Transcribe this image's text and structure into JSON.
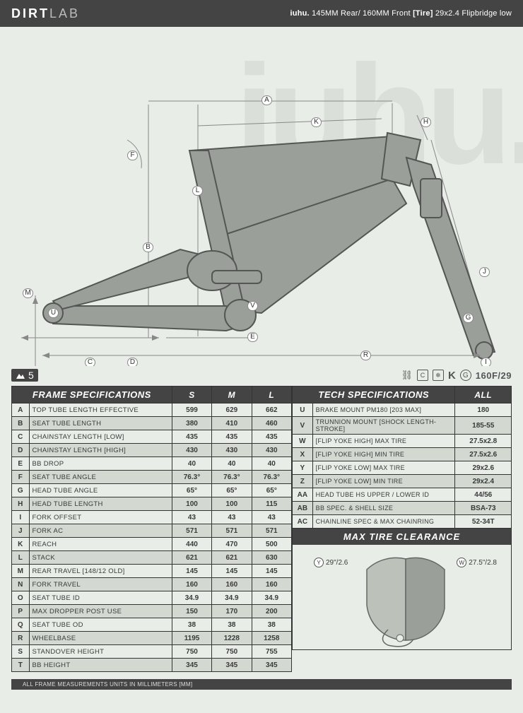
{
  "header": {
    "brand_bold": "DIRT",
    "brand_light": "LAB",
    "model": "iuhu.",
    "spec_text": "145MM Rear/ 160MM Front",
    "tire_label": "[Tire]",
    "tire_spec": "29x2.4 Flipbridge low"
  },
  "watermark": "iuhu.",
  "diagram_labels": [
    "A",
    "B",
    "C",
    "D",
    "E",
    "F",
    "G",
    "H",
    "I",
    "J",
    "K",
    "L",
    "M",
    "R",
    "U",
    "V"
  ],
  "badge": {
    "left_num": "5",
    "right_text": "160F/29"
  },
  "frame_table": {
    "title": "FRAME SPECIFICATIONS",
    "size_cols": [
      "S",
      "M",
      "L"
    ],
    "rows": [
      {
        "k": "A",
        "label": "TOP TUBE LENGTH EFFECTIVE",
        "v": [
          "599",
          "629",
          "662"
        ]
      },
      {
        "k": "B",
        "label": "SEAT TUBE LENGTH",
        "v": [
          "380",
          "410",
          "460"
        ]
      },
      {
        "k": "C",
        "label": "CHAINSTAY LENGTH [LOW]",
        "v": [
          "435",
          "435",
          "435"
        ]
      },
      {
        "k": "D",
        "label": "CHAINSTAY LENGTH [HIGH]",
        "v": [
          "430",
          "430",
          "430"
        ]
      },
      {
        "k": "E",
        "label": "BB DROP",
        "v": [
          "40",
          "40",
          "40"
        ]
      },
      {
        "k": "F",
        "label": "SEAT TUBE ANGLE",
        "v": [
          "76.3°",
          "76.3°",
          "76.3°"
        ]
      },
      {
        "k": "G",
        "label": "HEAD TUBE ANGLE",
        "v": [
          "65°",
          "65°",
          "65°"
        ]
      },
      {
        "k": "H",
        "label": "HEAD TUBE LENGTH",
        "v": [
          "100",
          "100",
          "115"
        ]
      },
      {
        "k": "I",
        "label": "FORK OFFSET",
        "v": [
          "43",
          "43",
          "43"
        ]
      },
      {
        "k": "J",
        "label": "FORK AC",
        "v": [
          "571",
          "571",
          "571"
        ]
      },
      {
        "k": "K",
        "label": "REACH",
        "v": [
          "440",
          "470",
          "500"
        ]
      },
      {
        "k": "L",
        "label": "STACK",
        "v": [
          "621",
          "621",
          "630"
        ]
      },
      {
        "k": "M",
        "label": "REAR TRAVEL [148/12 OLD]",
        "v": [
          "145",
          "145",
          "145"
        ]
      },
      {
        "k": "N",
        "label": "FORK TRAVEL",
        "v": [
          "160",
          "160",
          "160"
        ]
      },
      {
        "k": "O",
        "label": "SEAT TUBE ID",
        "v": [
          "34.9",
          "34.9",
          "34.9"
        ]
      },
      {
        "k": "P",
        "label": "MAX DROPPER POST USE",
        "v": [
          "150",
          "170",
          "200"
        ]
      },
      {
        "k": "Q",
        "label": "SEAT TUBE OD",
        "v": [
          "38",
          "38",
          "38"
        ]
      },
      {
        "k": "R",
        "label": "WHEELBASE",
        "v": [
          "1195",
          "1228",
          "1258"
        ]
      },
      {
        "k": "S",
        "label": "STANDOVER HEIGHT",
        "v": [
          "750",
          "750",
          "755"
        ]
      },
      {
        "k": "T",
        "label": "BB HEIGHT",
        "v": [
          "345",
          "345",
          "345"
        ]
      }
    ]
  },
  "tech_table": {
    "title": "TECH SPECIFICATIONS",
    "col": "ALL",
    "rows": [
      {
        "k": "U",
        "label": "BRAKE MOUNT PM180 [203 MAX]",
        "v": "180"
      },
      {
        "k": "V",
        "label": "TRUNNION MOUNT [SHOCK LENGTH-STROKE]",
        "v": "185-55"
      },
      {
        "k": "W",
        "label": "[FLIP YOKE HIGH] MAX TIRE",
        "v": "27.5x2.8"
      },
      {
        "k": "X",
        "label": "[FLIP YOKE HIGH] MIN TIRE",
        "v": "27.5x2.6"
      },
      {
        "k": "Y",
        "label": "[FLIP YOKE LOW] MAX TIRE",
        "v": "29x2.6"
      },
      {
        "k": "Z",
        "label": "[FLIP YOKE LOW] MIN TIRE",
        "v": "29x2.4"
      },
      {
        "k": "AA",
        "label": "HEAD TUBE HS UPPER / LOWER ID",
        "v": "44/56"
      },
      {
        "k": "AB",
        "label": "BB SPEC. & SHELL SIZE",
        "v": "BSA-73"
      },
      {
        "k": "AC",
        "label": "CHAINLINE SPEC & MAX CHAINRING",
        "v": "52-34T"
      }
    ]
  },
  "tire_clearance": {
    "title": "MAX TIRE CLEARANCE",
    "left": {
      "k": "Y",
      "v": "29\"/2.6"
    },
    "right": {
      "k": "W",
      "v": "27.5\"/2.8"
    }
  },
  "footer": "ALL FRAME MEASUREMENTS UNITS IN MILLIMETERS [MM]",
  "colors": {
    "bg": "#e8ede8",
    "dark": "#444444",
    "frame_fill": "#9aa099",
    "frame_stroke": "#555555",
    "dim_line": "#888888",
    "row_alt": "#d3d8d1"
  }
}
